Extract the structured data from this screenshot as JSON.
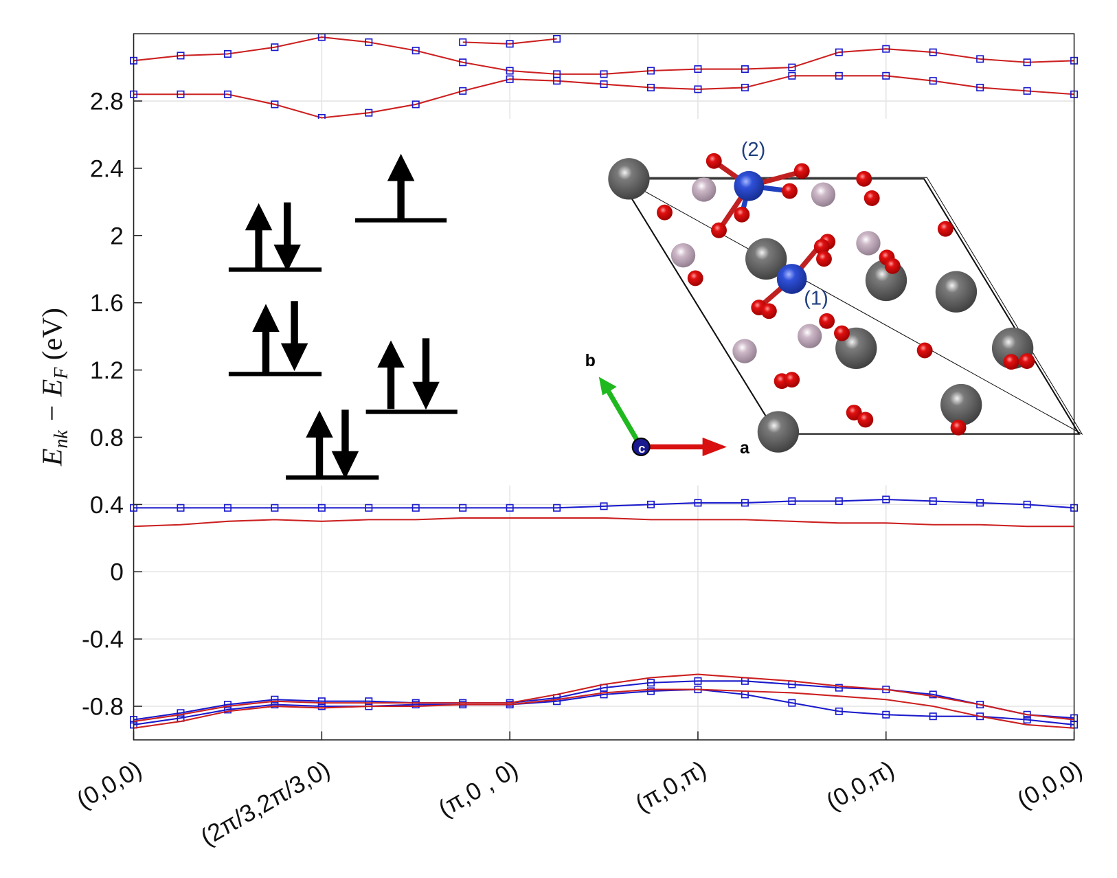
{
  "chart_data": {
    "type": "line",
    "ylabel": [
      "E",
      "nk",
      " − E",
      "F",
      " (eV)"
    ],
    "xlim": [
      0,
      5
    ],
    "xticks": [
      {
        "value": 0,
        "label": "(0,0,0)"
      },
      {
        "value": 1,
        "label": "(2π/3,2π/3,0)"
      },
      {
        "value": 2,
        "label": "(π,0 , 0)"
      },
      {
        "value": 3,
        "label": "(π,0,π)"
      },
      {
        "value": 4,
        "label": "(0,0,π)"
      },
      {
        "value": 5,
        "label": "(0,0,0)"
      }
    ],
    "ylim": [
      -1,
      3.2
    ],
    "yticks": [
      -0.8,
      -0.4,
      0,
      0.4,
      0.8,
      1.2,
      1.6,
      2,
      2.4,
      2.8
    ],
    "grid": true,
    "x": [
      0,
      0.25,
      0.5,
      0.75,
      1,
      1.25,
      1.5,
      1.75,
      2,
      2.25,
      2.5,
      2.75,
      3,
      3.25,
      3.5,
      3.75,
      4,
      4.25,
      4.5,
      4.75,
      5
    ],
    "series": [
      {
        "color": "#1a1acc",
        "line_color": "#cc2020",
        "marker": "square",
        "values": [
          2.84,
          2.84,
          2.84,
          2.78,
          2.7,
          2.73,
          2.78,
          2.86,
          2.93,
          2.92,
          2.9,
          2.88,
          2.87,
          2.88,
          2.95,
          2.95,
          2.95,
          2.92,
          2.88,
          2.86,
          2.84
        ]
      },
      {
        "color": "#1a1acc",
        "line_color": "#cc2020",
        "marker": "square",
        "values": [
          3.04,
          3.07,
          3.08,
          3.12,
          3.18,
          3.15,
          3.1,
          3.03,
          2.98,
          2.96,
          2.96,
          2.98,
          2.99,
          2.99,
          3.0,
          3.09,
          3.11,
          3.09,
          3.05,
          3.03,
          3.04
        ]
      },
      {
        "color": "#1a1acc",
        "line_color": "#cc2020",
        "marker": "square",
        "values": [
          null,
          null,
          null,
          null,
          null,
          null,
          null,
          3.15,
          3.14,
          3.17,
          null,
          null,
          null,
          null,
          null,
          null,
          null,
          null,
          null,
          null,
          null
        ]
      },
      {
        "color": "#1a1acc",
        "line_color": "#1a1acc",
        "marker": "square",
        "values": [
          0.38,
          0.38,
          0.38,
          0.38,
          0.38,
          0.38,
          0.38,
          0.38,
          0.38,
          0.38,
          0.39,
          0.4,
          0.41,
          0.41,
          0.42,
          0.42,
          0.43,
          0.42,
          0.41,
          0.4,
          0.38
        ]
      },
      {
        "color": "#cc2020",
        "values": [
          0.27,
          0.28,
          0.3,
          0.31,
          0.3,
          0.31,
          0.31,
          0.32,
          0.32,
          0.32,
          0.32,
          0.31,
          0.31,
          0.31,
          0.3,
          0.29,
          0.29,
          0.28,
          0.28,
          0.27,
          0.27
        ]
      },
      {
        "color": "#1a1acc",
        "line_color": "#1a1acc",
        "marker": "square",
        "values": [
          -0.88,
          -0.84,
          -0.79,
          -0.76,
          -0.77,
          -0.77,
          -0.78,
          -0.78,
          -0.78,
          -0.75,
          -0.69,
          -0.66,
          -0.65,
          -0.65,
          -0.67,
          -0.69,
          -0.7,
          -0.73,
          -0.79,
          -0.85,
          -0.87
        ]
      },
      {
        "color": "#1a1acc",
        "line_color": "#1a1acc",
        "marker": "square",
        "values": [
          -0.91,
          -0.87,
          -0.82,
          -0.79,
          -0.8,
          -0.8,
          -0.79,
          -0.79,
          -0.79,
          -0.77,
          -0.73,
          -0.71,
          -0.7,
          -0.73,
          -0.78,
          -0.83,
          -0.85,
          -0.86,
          -0.86,
          -0.88,
          -0.91
        ]
      },
      {
        "color": "#cc2020",
        "values": [
          -0.89,
          -0.85,
          -0.8,
          -0.77,
          -0.78,
          -0.78,
          -0.78,
          -0.78,
          -0.78,
          -0.73,
          -0.67,
          -0.63,
          -0.61,
          -0.63,
          -0.65,
          -0.68,
          -0.7,
          -0.74,
          -0.79,
          -0.85,
          -0.88
        ]
      },
      {
        "color": "#cc2020",
        "values": [
          -0.93,
          -0.89,
          -0.83,
          -0.8,
          -0.81,
          -0.8,
          -0.8,
          -0.79,
          -0.79,
          -0.76,
          -0.72,
          -0.7,
          -0.7,
          -0.71,
          -0.72,
          -0.74,
          -0.76,
          -0.8,
          -0.86,
          -0.91,
          -0.93
        ]
      }
    ],
    "inset_labels": {
      "site2": "(2)",
      "site1": "(1)",
      "axis_b": "b",
      "axis_a": "a",
      "axis_c": "c"
    }
  }
}
